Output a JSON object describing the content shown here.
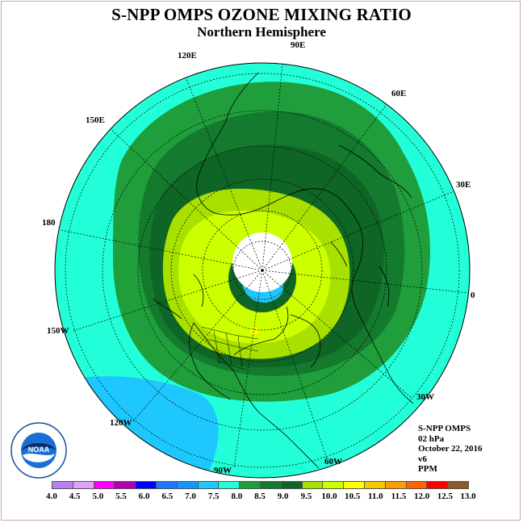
{
  "header": {
    "title": "S-NPP OMPS OZONE MIXING RATIO",
    "subtitle": "Northern Hemisphere"
  },
  "map": {
    "projection": "north-polar-stereographic",
    "longitude_labels": {
      "lon_90E": "90E",
      "lon_60E": "60E",
      "lon_30E": "30E",
      "lon_0": "0",
      "lon_30W": "30W",
      "lon_60W": "60W",
      "lon_90W": "90W",
      "lon_120W": "120W",
      "lon_150W": "150W",
      "lon_180": "180",
      "lon_150E": "150E",
      "lon_120E": "120E"
    },
    "colors": {
      "ocean_bg": "#22ffd8",
      "low_cyan": "#1ec8ff",
      "band_8_0": "#1f9e3b",
      "band_8_5": "#137a2e",
      "band_9_0": "#0f6525",
      "band_9_5": "#a8e000",
      "band_10_0": "#ccff00",
      "band_10_5": "#ffff00",
      "polar_night": "#ffffff"
    }
  },
  "info": {
    "instrument": "S-NPP OMPS",
    "pressure": "02 hPa",
    "date": "October 22, 2016",
    "version": "v6",
    "units": "PPM"
  },
  "legend": {
    "colors": [
      "#b77ff0",
      "#e0a0f5",
      "#ff00ff",
      "#b000b0",
      "#0000ff",
      "#1e78ff",
      "#1496ff",
      "#1ec8ff",
      "#22ffd8",
      "#1f9e3b",
      "#137a2e",
      "#0f6525",
      "#a8e000",
      "#ccff00",
      "#ffff00",
      "#f5c800",
      "#ff9c00",
      "#ff6400",
      "#ff0000",
      "#8b5a2b"
    ],
    "ticks": [
      "4.0",
      "4.5",
      "5.0",
      "5.5",
      "6.0",
      "6.5",
      "7.0",
      "7.5",
      "8.0",
      "8.5",
      "9.0",
      "9.5",
      "10.0",
      "10.5",
      "11.0",
      "11.5",
      "12.0",
      "12.5",
      "13.0"
    ]
  },
  "logo": {
    "text": "NOAA"
  }
}
